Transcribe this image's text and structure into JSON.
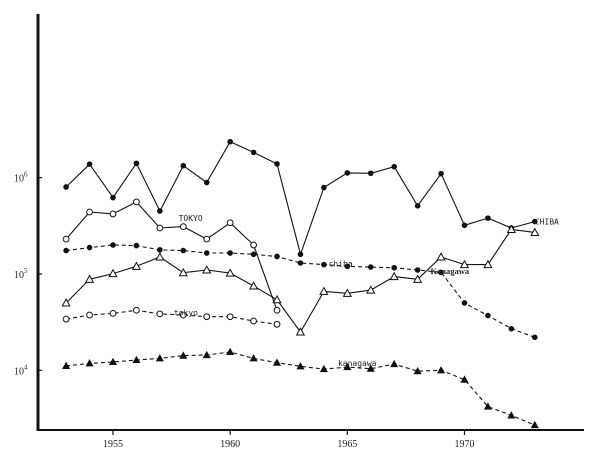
{
  "chart_data": {
    "type": "line",
    "y_scale": "log",
    "x_range": [
      1951.8,
      1975.1
    ],
    "y_range": [
      2400,
      50000000
    ],
    "x_ticks": [
      1955,
      1960,
      1965,
      1970
    ],
    "x_tick_labels": [
      "1955",
      "1960",
      "1965",
      "1970"
    ],
    "y_ticks": [
      10000,
      100000,
      1000000
    ],
    "y_tick_labels": [
      {
        "base": "10",
        "exp": "4"
      },
      {
        "base": "10",
        "exp": "5"
      },
      {
        "base": "10",
        "exp": "6"
      }
    ],
    "grid": false,
    "legend": "none",
    "series": [
      {
        "label": "CHIBA",
        "label_x": 1973.0,
        "label_y": 350000,
        "label_anchor": "start",
        "label_style": "mono",
        "line": "solid",
        "marker": "filled-circle",
        "x": [
          1953,
          1954,
          1955,
          1956,
          1957,
          1958,
          1959,
          1960,
          1961,
          1962,
          1963,
          1964,
          1965,
          1966,
          1967,
          1968,
          1969,
          1970,
          1971,
          1972,
          1973
        ],
        "y": [
          800000,
          1380000,
          620000,
          1410000,
          450000,
          1330000,
          890000,
          2360000,
          1830000,
          1390000,
          160000,
          790000,
          1120000,
          1110000,
          1300000,
          510000,
          1100000,
          320000,
          380000,
          300000,
          350000
        ]
      },
      {
        "label": "TOKYO",
        "label_x": 1957.8,
        "label_y": 380000,
        "label_anchor": "start",
        "label_style": "mono",
        "line": "solid",
        "marker": "open-circle",
        "x": [
          1953,
          1954,
          1955,
          1956,
          1957,
          1958,
          1959,
          1960,
          1961,
          1962
        ],
        "y": [
          230000,
          440000,
          420000,
          560000,
          300000,
          310000,
          230000,
          340000,
          200000,
          42000
        ]
      },
      {
        "label": "chiba",
        "label_x": 1964.2,
        "label_y": 128000,
        "label_anchor": "start",
        "label_style": "mono",
        "line": "dashed",
        "marker": "filled-circle",
        "x": [
          1953,
          1954,
          1955,
          1956,
          1957,
          1958,
          1959,
          1960,
          1961,
          1962,
          1963,
          1964,
          1965,
          1966,
          1967,
          1968,
          1969,
          1970,
          1971,
          1972,
          1973
        ],
        "y": [
          175000,
          188000,
          200000,
          197000,
          178000,
          175000,
          165000,
          165000,
          160000,
          152000,
          130000,
          125000,
          120000,
          118000,
          116000,
          110000,
          104000,
          50000,
          37000,
          27000,
          22000
        ]
      },
      {
        "label": "Kanagawa",
        "label_x": 1970.2,
        "label_y": 107000,
        "label_anchor": "end",
        "label_style": "bold",
        "line": "solid",
        "marker": "open-triangle",
        "x": [
          1953,
          1954,
          1955,
          1956,
          1957,
          1958,
          1959,
          1960,
          1961,
          1962,
          1963,
          1964,
          1965,
          1966,
          1967,
          1968,
          1969,
          1970,
          1971,
          1972,
          1973
        ],
        "y": [
          50000,
          88000,
          101000,
          120000,
          150000,
          103000,
          110000,
          102000,
          75000,
          54000,
          25000,
          66000,
          63000,
          68000,
          94000,
          88000,
          150000,
          125000,
          125000,
          290000,
          270000
        ]
      },
      {
        "label": "tokyo",
        "label_x": 1957.6,
        "label_y": 40000,
        "label_anchor": "start",
        "label_style": "mono",
        "line": "dashed",
        "marker": "open-circle",
        "x": [
          1953,
          1954,
          1955,
          1956,
          1957,
          1958,
          1959,
          1960,
          1961,
          1962
        ],
        "y": [
          34000,
          37500,
          39000,
          42000,
          38500,
          37500,
          36000,
          36000,
          32500,
          30000
        ]
      },
      {
        "label": "kanagawa",
        "label_x": 1964.6,
        "label_y": 11900,
        "label_anchor": "start",
        "label_style": "mono",
        "line": "dashed",
        "marker": "filled-triangle",
        "x": [
          1953,
          1954,
          1955,
          1956,
          1957,
          1958,
          1959,
          1960,
          1961,
          1962,
          1963,
          1964,
          1965,
          1966,
          1967,
          1968,
          1969,
          1970,
          1971,
          1972,
          1973
        ],
        "y": [
          11100,
          11800,
          12200,
          12800,
          13300,
          14200,
          14400,
          15500,
          13300,
          12000,
          11000,
          10300,
          10800,
          10400,
          11600,
          9800,
          10000,
          8000,
          4200,
          3400,
          2700
        ]
      }
    ]
  }
}
